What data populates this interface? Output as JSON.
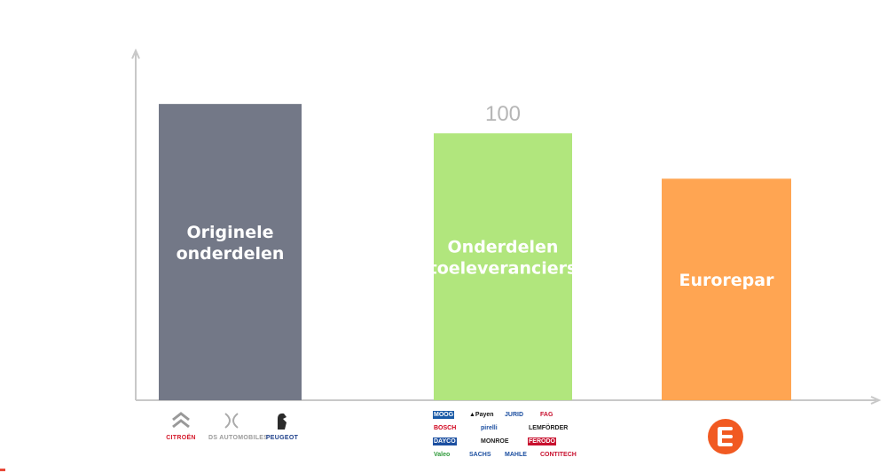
{
  "chart_data": {
    "type": "bar",
    "categories": [
      "Originele onderdelen",
      "Onderdelen toeleveranciers",
      "Eurorepar"
    ],
    "category_lines": [
      [
        "Originele",
        "onderdelen"
      ],
      [
        "Onderdelen",
        "toeleveranciers"
      ],
      [
        "Eurorepar"
      ]
    ],
    "values": [
      111,
      100,
      83
    ],
    "data_labels": [
      "",
      "100",
      ""
    ],
    "colors": [
      "#737887",
      "#b1e67d",
      "#ffa552"
    ],
    "ylim": [
      0,
      130
    ],
    "title": "",
    "xlabel": "",
    "ylabel": "",
    "grid": false,
    "legend": "none"
  },
  "logos": {
    "oem": [
      {
        "name": "CITROËN",
        "color": "#d4192b"
      },
      {
        "name": "DS AUTOMOBILES",
        "color": "#9a9a9a"
      },
      {
        "name": "PEUGEOT",
        "color": "#1d3f8a"
      }
    ],
    "suppliers": [
      {
        "name": "MOOG",
        "bg": "#1a5aa6",
        "fg": "#ffffff"
      },
      {
        "name": "▲Payen",
        "bg": "#ffffff",
        "fg": "#111111"
      },
      {
        "name": "JURID",
        "bg": "#ffffff",
        "fg": "#1c4fa0"
      },
      {
        "name": "FAG",
        "bg": "#ffffff",
        "fg": "#c8102e"
      },
      {
        "name": "BOSCH",
        "bg": "#ffffff",
        "fg": "#d0021b"
      },
      {
        "name": "pirelli",
        "bg": "#ffffff",
        "fg": "#1c4fa0"
      },
      {
        "name": "LEMFÖRDER",
        "bg": "#ffffff",
        "fg": "#222222"
      },
      {
        "name": "DAYCO",
        "bg": "#1c4fa0",
        "fg": "#ffffff"
      },
      {
        "name": "MONROE",
        "bg": "#ffffff",
        "fg": "#222222"
      },
      {
        "name": "FERODO",
        "bg": "#c8102e",
        "fg": "#ffffff"
      },
      {
        "name": "Valeo",
        "bg": "#ffffff",
        "fg": "#2f9a3a"
      },
      {
        "name": "SACHS",
        "bg": "#ffffff",
        "fg": "#1c4fa0"
      },
      {
        "name": "MAHLE",
        "bg": "#ffffff",
        "fg": "#1c4fa0"
      },
      {
        "name": "CONTITECH",
        "bg": "#ffffff",
        "fg": "#c8102e"
      }
    ],
    "eurorepar_color": "#f15a22"
  }
}
